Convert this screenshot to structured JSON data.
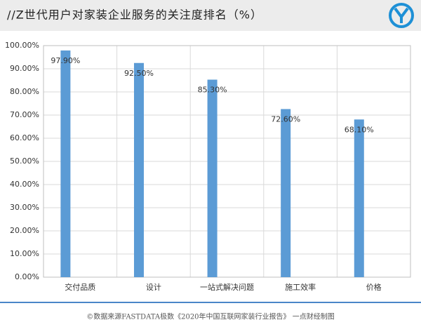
{
  "chart_data": {
    "type": "bar",
    "title": "//Z世代用户对家装企业服务的关注度排名（%）",
    "source": "©数据来源FASTDATA极数《2020年中国互联网家装行业报告》 一点财经制图",
    "categories": [
      "交付品质",
      "设计",
      "一站式解决问题",
      "施工效率",
      "价格"
    ],
    "values": [
      97.9,
      92.5,
      85.3,
      72.6,
      68.1
    ],
    "value_labels": [
      "97.90%",
      "92.50%",
      "85.30%",
      "72.60%",
      "68.10%"
    ],
    "color": "#5b9bd5",
    "ylim": [
      0,
      100
    ],
    "yticks": [
      {
        "value": 0,
        "label": "0.00%"
      },
      {
        "value": 10,
        "label": "10.00%"
      },
      {
        "value": 20,
        "label": "20.00%"
      },
      {
        "value": 30,
        "label": "30.00%"
      },
      {
        "value": 40,
        "label": "40.00%"
      },
      {
        "value": 50,
        "label": "50.00%"
      },
      {
        "value": 60,
        "label": "60.00%"
      },
      {
        "value": 70,
        "label": "70.00%"
      },
      {
        "value": 80,
        "label": "80.00%"
      },
      {
        "value": 90,
        "label": "90.00%"
      },
      {
        "value": 100,
        "label": "100.00%"
      }
    ],
    "grid": true
  }
}
